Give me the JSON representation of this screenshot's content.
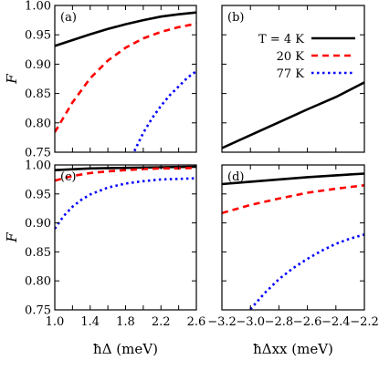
{
  "chart_data": [
    {
      "id": "a",
      "type": "line",
      "panel_label": "(a)",
      "xlabel": "",
      "ylabel": "F",
      "xlim": [
        1.0,
        2.6
      ],
      "ylim": [
        0.75,
        1.0
      ],
      "xticks": [],
      "yticks": [
        "0.75",
        "0.80",
        "0.85",
        "0.90",
        "0.95",
        "1.00"
      ],
      "series": [
        {
          "name": "",
          "color": "#000000",
          "dash": "solid",
          "x": [
            1.0,
            1.2,
            1.4,
            1.6,
            1.8,
            2.0,
            2.2,
            2.4,
            2.6
          ],
          "y": [
            0.931,
            0.941,
            0.951,
            0.96,
            0.968,
            0.975,
            0.981,
            0.985,
            0.988
          ]
        },
        {
          "name": "",
          "color": "#ff0000",
          "dash": "dashed",
          "x": [
            1.0,
            1.2,
            1.4,
            1.6,
            1.8,
            2.0,
            2.2,
            2.4,
            2.6
          ],
          "y": [
            0.784,
            0.835,
            0.876,
            0.906,
            0.928,
            0.944,
            0.955,
            0.963,
            0.969
          ]
        },
        {
          "name": "",
          "color": "#0000ff",
          "dash": "dotted",
          "x": [
            1.9,
            2.0,
            2.1,
            2.2,
            2.3,
            2.4,
            2.5,
            2.6
          ],
          "y": [
            0.752,
            0.783,
            0.808,
            0.829,
            0.847,
            0.862,
            0.877,
            0.888
          ]
        }
      ]
    },
    {
      "id": "b",
      "type": "line",
      "panel_label": "(b)",
      "xlabel": "",
      "ylabel": "",
      "xlim": [
        -3.2,
        -2.2
      ],
      "ylim": [
        0.75,
        1.0
      ],
      "xticks": [],
      "yticks": [],
      "legend": {
        "placement": "top-right",
        "entries": [
          {
            "label": "T = 4 K",
            "color": "#000000",
            "dash": "solid"
          },
          {
            "label": "20 K",
            "color": "#ff0000",
            "dash": "dashed"
          },
          {
            "label": "77 K",
            "color": "#0000ff",
            "dash": "dotted"
          }
        ]
      },
      "series": [
        {
          "name": "T = 4 K",
          "color": "#000000",
          "dash": "solid",
          "x": [
            -3.2,
            -3.0,
            -2.8,
            -2.6,
            -2.4,
            -2.2
          ],
          "y": [
            0.757,
            0.779,
            0.801,
            0.823,
            0.844,
            0.869
          ]
        }
      ]
    },
    {
      "id": "c",
      "type": "line",
      "panel_label": "(c)",
      "xlabel": "ħΔ (meV)",
      "ylabel": "F",
      "xlim": [
        1.0,
        2.6
      ],
      "ylim": [
        0.75,
        1.0
      ],
      "xticks": [
        "1.0",
        "1.4",
        "1.8",
        "2.2",
        "2.6"
      ],
      "yticks": [
        "0.75",
        "0.80",
        "0.85",
        "0.90",
        "0.95",
        "1.00"
      ],
      "series": [
        {
          "name": "",
          "color": "#000000",
          "dash": "solid",
          "x": [
            1.0,
            1.4,
            1.8,
            2.2,
            2.6
          ],
          "y": [
            0.991,
            0.994,
            0.995,
            0.996,
            0.997
          ]
        },
        {
          "name": "",
          "color": "#ff0000",
          "dash": "dashed",
          "x": [
            1.0,
            1.2,
            1.4,
            1.6,
            1.8,
            2.0,
            2.2,
            2.4,
            2.6
          ],
          "y": [
            0.973,
            0.981,
            0.986,
            0.989,
            0.991,
            0.993,
            0.994,
            0.994,
            0.995
          ]
        },
        {
          "name": "",
          "color": "#0000ff",
          "dash": "dotted",
          "x": [
            1.0,
            1.1,
            1.2,
            1.3,
            1.4,
            1.6,
            1.8,
            2.0,
            2.2,
            2.4,
            2.6
          ],
          "y": [
            0.89,
            0.912,
            0.928,
            0.94,
            0.949,
            0.961,
            0.968,
            0.972,
            0.975,
            0.976,
            0.977
          ]
        }
      ]
    },
    {
      "id": "d",
      "type": "line",
      "panel_label": "(d)",
      "xlabel": "ħΔxx (meV)",
      "ylabel": "",
      "xlim": [
        -3.2,
        -2.2
      ],
      "ylim": [
        0.75,
        1.0
      ],
      "xticks": [
        "−3.2",
        "−3.0",
        "−2.8",
        "−2.6",
        "−2.4",
        "−2.2"
      ],
      "yticks": [],
      "series": [
        {
          "name": "",
          "color": "#000000",
          "dash": "solid",
          "x": [
            -3.2,
            -3.0,
            -2.8,
            -2.6,
            -2.4,
            -2.2
          ],
          "y": [
            0.967,
            0.971,
            0.975,
            0.979,
            0.982,
            0.985
          ]
        },
        {
          "name": "",
          "color": "#ff0000",
          "dash": "dashed",
          "x": [
            -3.2,
            -3.0,
            -2.8,
            -2.6,
            -2.4,
            -2.2
          ],
          "y": [
            0.917,
            0.931,
            0.942,
            0.952,
            0.959,
            0.965
          ]
        },
        {
          "name": "",
          "color": "#0000ff",
          "dash": "dotted",
          "x": [
            -3.0,
            -2.9,
            -2.8,
            -2.7,
            -2.6,
            -2.5,
            -2.4,
            -2.3,
            -2.2
          ],
          "y": [
            0.751,
            0.779,
            0.803,
            0.822,
            0.838,
            0.852,
            0.864,
            0.873,
            0.88
          ]
        }
      ]
    }
  ]
}
